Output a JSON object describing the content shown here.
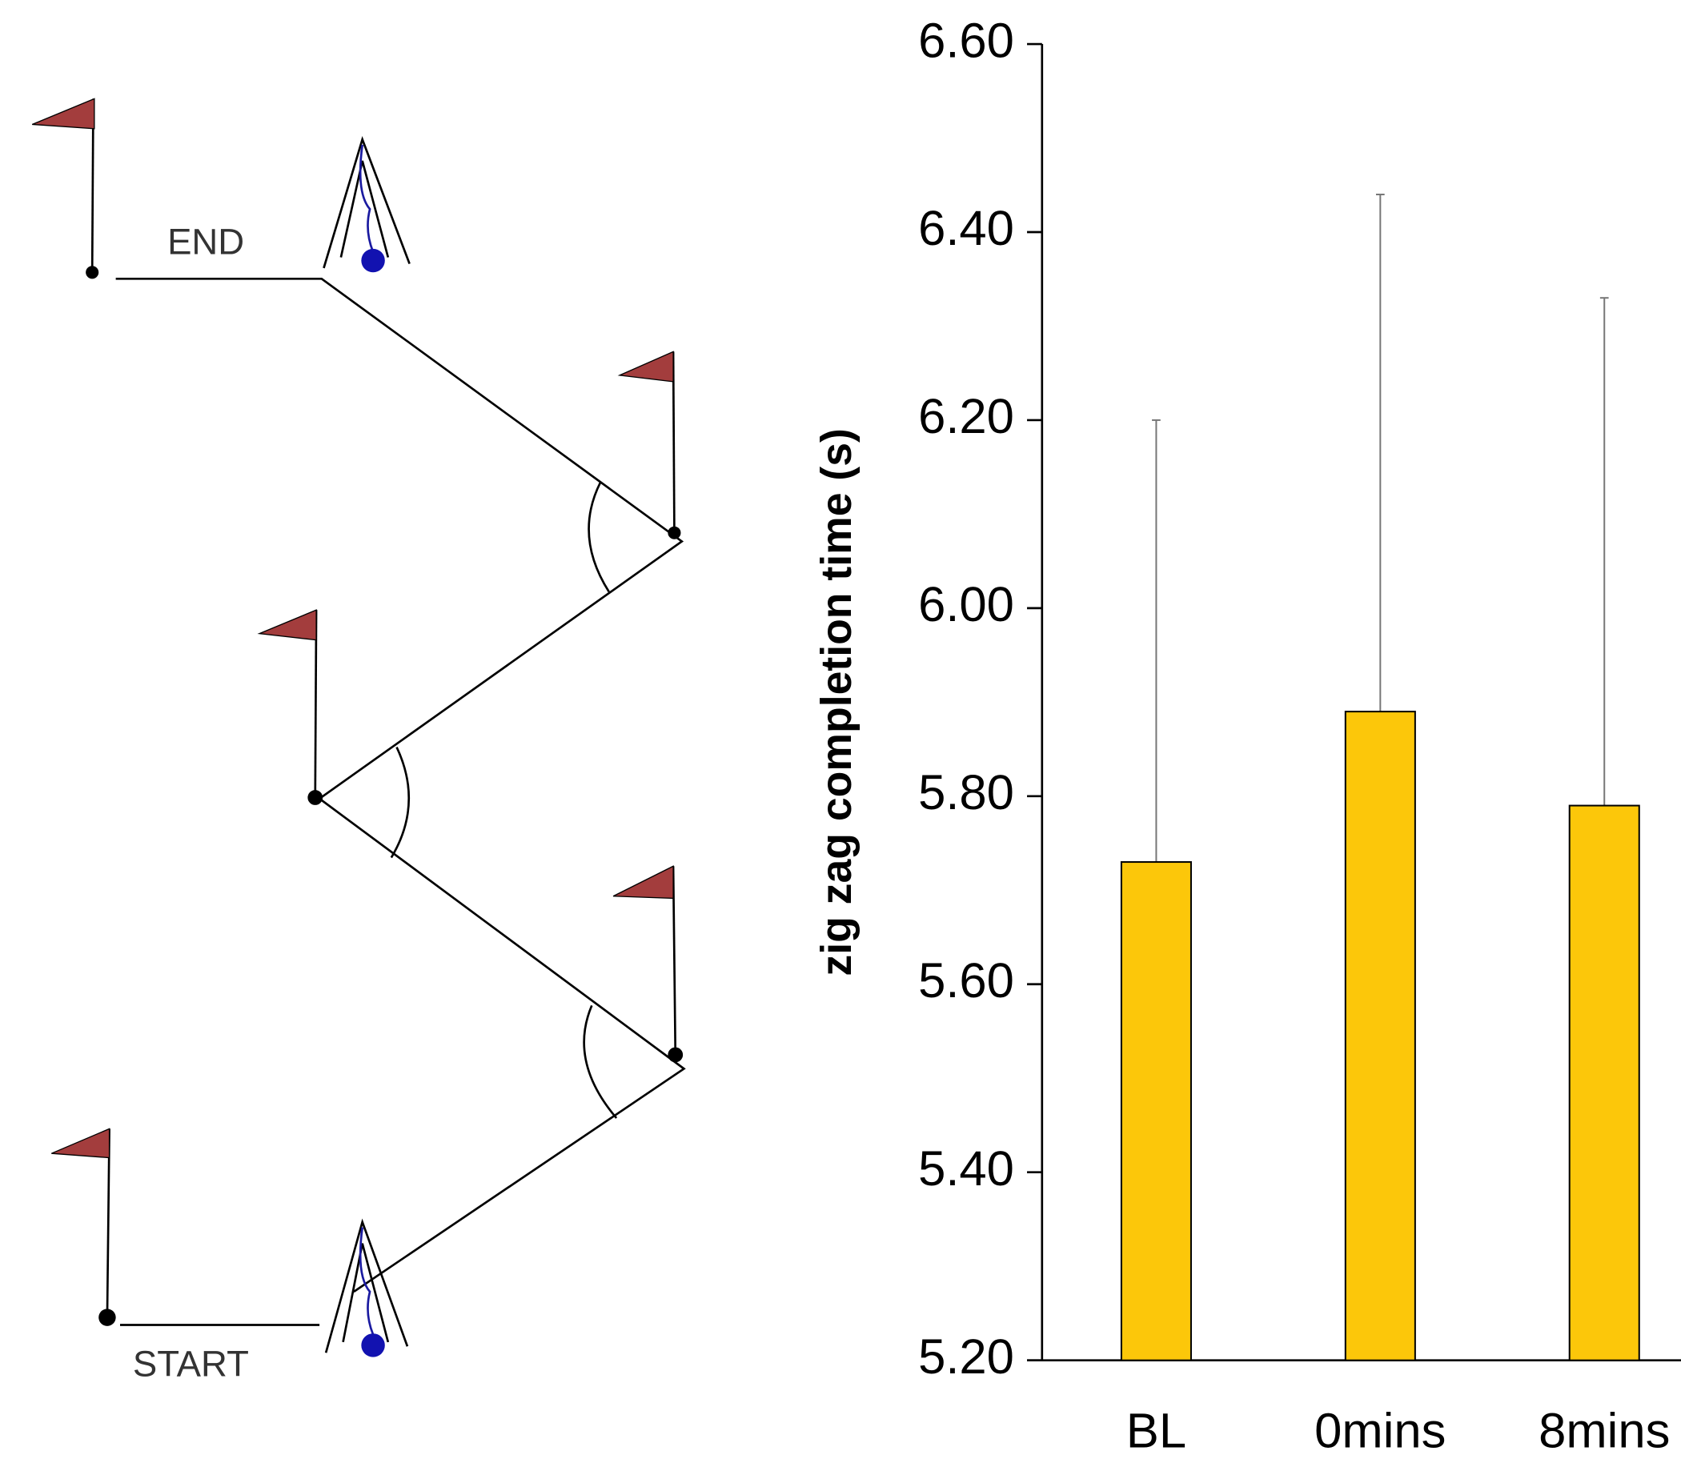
{
  "diagram": {
    "end_label": "END",
    "start_label": "START"
  },
  "chart_data": {
    "type": "bar",
    "y_label": "zig zag completion time (s)",
    "categories": [
      "BL",
      "0mins",
      "8mins"
    ],
    "values": [
      5.73,
      5.89,
      5.79
    ],
    "errors": [
      0.47,
      0.55,
      0.54
    ],
    "color": "#FCC70A",
    "ylim": [
      5.2,
      6.6
    ],
    "yticks": [
      {
        "value": 5.2,
        "label": "5.20"
      },
      {
        "value": 5.4,
        "label": "5.40"
      },
      {
        "value": 5.6,
        "label": "5.60"
      },
      {
        "value": 5.8,
        "label": "5.80"
      },
      {
        "value": 6.0,
        "label": "6.00"
      },
      {
        "value": 6.2,
        "label": "6.20"
      },
      {
        "value": 6.4,
        "label": "6.40"
      },
      {
        "value": 6.6,
        "label": "6.60"
      }
    ]
  }
}
